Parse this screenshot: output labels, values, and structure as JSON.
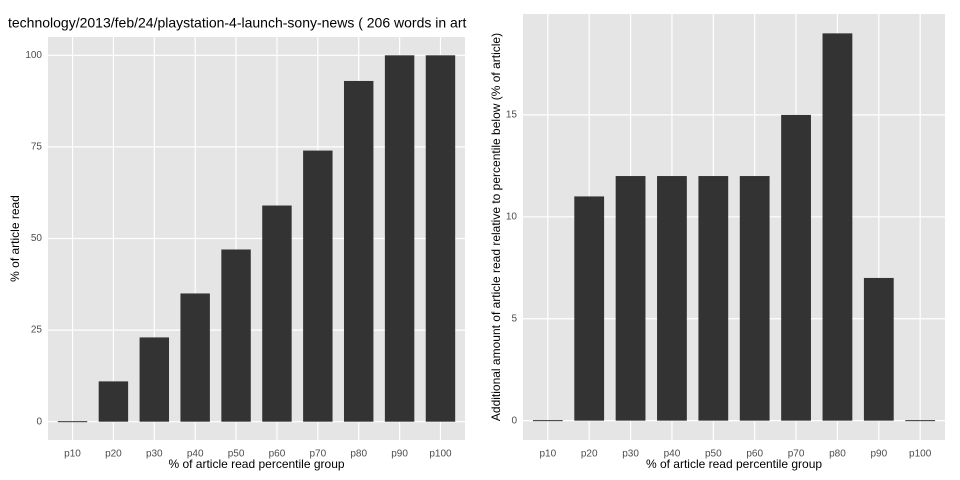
{
  "chart_data": [
    {
      "type": "bar",
      "title": "technology/2013/feb/24/playstation-4-launch-sony-news ( 206 words in art",
      "x_label": "% of article read percentile group",
      "y_label": "% of article read",
      "categories": [
        "p10",
        "p20",
        "p30",
        "p40",
        "p50",
        "p60",
        "p70",
        "p80",
        "p90",
        "p100"
      ],
      "values": [
        0,
        11,
        23,
        35,
        47,
        59,
        74,
        93,
        100,
        100
      ],
      "color": "#333333",
      "ylim": [
        -5,
        105
      ],
      "yticks": [
        0,
        25,
        50,
        75,
        100
      ],
      "grid": true
    },
    {
      "type": "bar",
      "x_label": "% of article read percentile group",
      "y_label": "Additional amount of article read relative to percentile below (% of article)",
      "categories": [
        "p10",
        "p20",
        "p30",
        "p40",
        "p50",
        "p60",
        "p70",
        "p80",
        "p90",
        "p100"
      ],
      "values": [
        0,
        11,
        12,
        12,
        12,
        12,
        15,
        19,
        7,
        0
      ],
      "color": "#333333",
      "ylim": [
        -0.95,
        19.95
      ],
      "yticks": [
        0,
        5,
        10,
        15
      ],
      "grid": true
    }
  ]
}
